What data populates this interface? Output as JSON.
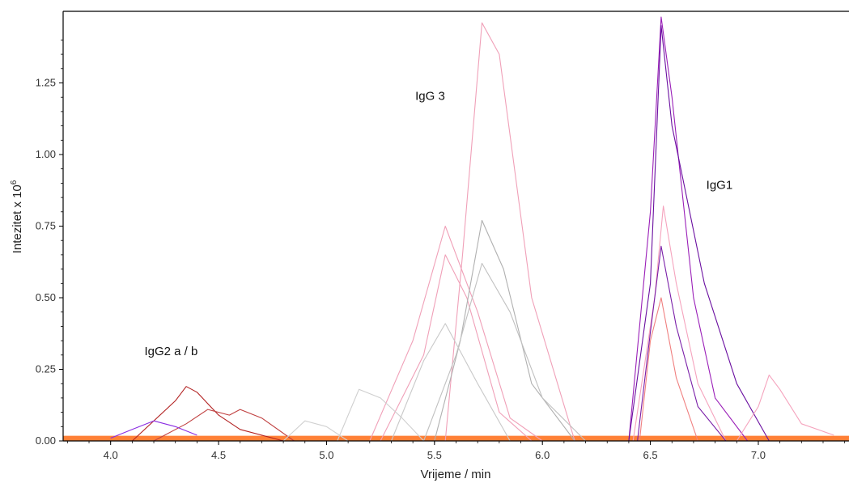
{
  "chart_data": {
    "type": "line",
    "xlabel": "Vrijeme / min",
    "ylabel_base": "Intezitet x 10",
    "ylabel_exp": "6",
    "xlim": [
      3.78,
      7.42
    ],
    "ylim": [
      0,
      1.5
    ],
    "x_ticks": [
      4.0,
      4.5,
      5.0,
      5.5,
      6.0,
      6.5,
      7.0
    ],
    "x_tick_labels": [
      "4.0",
      "4.5",
      "5.0",
      "5.5",
      "6.0",
      "6.5",
      "7.0"
    ],
    "y_ticks": [
      0.0,
      0.25,
      0.5,
      0.75,
      1.0,
      1.25
    ],
    "y_tick_labels": [
      "0.00",
      "0.25",
      "0.50",
      "0.75",
      "1.00",
      "1.25"
    ],
    "grid": false,
    "legend": "none",
    "annotations": [
      {
        "text": "IgG2 a / b",
        "x": 4.28,
        "y": 0.3
      },
      {
        "text": "IgG 3",
        "x": 5.48,
        "y": 1.19
      },
      {
        "text": "IgG1",
        "x": 6.82,
        "y": 0.88
      }
    ],
    "colors": {
      "igg2": "#ff6a13",
      "igg2_dark": "#b22222",
      "igg3": "#c8c8c8",
      "igg3_pink": "#f0a0b8",
      "igg1": "#a020c0",
      "igg1_pink": "#f5a3bd",
      "baseline_blue": "#3a3aa0"
    },
    "series_groups": [
      {
        "group": "IgG2 a / b",
        "color": "#b22222",
        "x": [
          4.1,
          4.3,
          4.35,
          4.4,
          4.5,
          4.6,
          4.8
        ],
        "y": [
          0.0,
          0.14,
          0.19,
          0.17,
          0.09,
          0.04,
          0.0
        ]
      },
      {
        "group": "IgG2 a / b",
        "color": "#c04040",
        "x": [
          4.2,
          4.35,
          4.45,
          4.55,
          4.6,
          4.7,
          4.85
        ],
        "y": [
          0.0,
          0.06,
          0.11,
          0.09,
          0.11,
          0.08,
          0.0
        ]
      },
      {
        "group": "IgG2 a / b",
        "color": "#8a2be2",
        "x": [
          4.0,
          4.1,
          4.2,
          4.3,
          4.4
        ],
        "y": [
          0.01,
          0.04,
          0.07,
          0.05,
          0.02
        ]
      },
      {
        "group": "IgG3",
        "color": "#f0a0b8",
        "x": [
          5.2,
          5.4,
          5.55,
          5.7,
          5.85,
          6.0
        ],
        "y": [
          0.0,
          0.35,
          0.75,
          0.45,
          0.08,
          0.0
        ]
      },
      {
        "group": "IgG3",
        "color": "#f0a0b8",
        "x": [
          5.25,
          5.45,
          5.55,
          5.65,
          5.8,
          5.95
        ],
        "y": [
          0.0,
          0.3,
          0.65,
          0.5,
          0.1,
          0.0
        ]
      },
      {
        "group": "IgG3",
        "color": "#f0a0b8",
        "x": [
          5.55,
          5.63,
          5.72,
          5.8,
          5.95,
          6.15
        ],
        "y": [
          0.0,
          0.65,
          1.46,
          1.35,
          0.5,
          0.0
        ]
      },
      {
        "group": "IgG3",
        "color": "#b0b0b0",
        "x": [
          5.5,
          5.62,
          5.72,
          5.82,
          5.95,
          6.15
        ],
        "y": [
          0.0,
          0.35,
          0.77,
          0.6,
          0.2,
          0.0
        ]
      },
      {
        "group": "IgG3",
        "color": "#c0c0c0",
        "x": [
          5.45,
          5.6,
          5.72,
          5.85,
          6.0,
          6.2
        ],
        "y": [
          0.0,
          0.3,
          0.62,
          0.45,
          0.15,
          0.0
        ]
      },
      {
        "group": "IgG3",
        "color": "#c8c8c8",
        "x": [
          5.3,
          5.45,
          5.55,
          5.7,
          5.85
        ],
        "y": [
          0.0,
          0.28,
          0.41,
          0.2,
          0.0
        ]
      },
      {
        "group": "IgG3",
        "color": "#cfcfcf",
        "x": [
          5.05,
          5.15,
          5.25,
          5.35,
          5.45
        ],
        "y": [
          0.0,
          0.18,
          0.15,
          0.08,
          0.0
        ]
      },
      {
        "group": "IgG3",
        "color": "#d0d0d0",
        "x": [
          4.8,
          4.9,
          5.0,
          5.1
        ],
        "y": [
          0.0,
          0.07,
          0.05,
          0.0
        ]
      },
      {
        "group": "IgG1",
        "color": "#9a1fb8",
        "x": [
          6.4,
          6.5,
          6.55,
          6.6,
          6.7,
          6.8,
          6.95
        ],
        "y": [
          0.0,
          0.8,
          1.48,
          1.2,
          0.5,
          0.15,
          0.0
        ]
      },
      {
        "group": "IgG1",
        "color": "#6a0fa0",
        "x": [
          6.4,
          6.5,
          6.55,
          6.6,
          6.75,
          6.9,
          7.05
        ],
        "y": [
          0.0,
          0.55,
          1.45,
          1.1,
          0.55,
          0.2,
          0.0
        ]
      },
      {
        "group": "IgG1",
        "color": "#f5a3bd",
        "x": [
          6.42,
          6.52,
          6.56,
          6.62,
          6.72,
          6.85
        ],
        "y": [
          0.0,
          0.5,
          0.82,
          0.55,
          0.2,
          0.0
        ]
      },
      {
        "group": "IgG1",
        "color": "#7a1fa8",
        "x": [
          6.44,
          6.5,
          6.55,
          6.62,
          6.72,
          6.85
        ],
        "y": [
          0.0,
          0.38,
          0.68,
          0.4,
          0.12,
          0.0
        ]
      },
      {
        "group": "IgG1",
        "color": "#f08080",
        "x": [
          6.45,
          6.5,
          6.55,
          6.62,
          6.72
        ],
        "y": [
          0.0,
          0.35,
          0.5,
          0.22,
          0.0
        ]
      },
      {
        "group": "IgG1",
        "color": "#f5a3bd",
        "x": [
          6.9,
          7.0,
          7.05,
          7.1,
          7.2,
          7.35
        ],
        "y": [
          0.0,
          0.12,
          0.23,
          0.18,
          0.06,
          0.02
        ]
      }
    ]
  }
}
